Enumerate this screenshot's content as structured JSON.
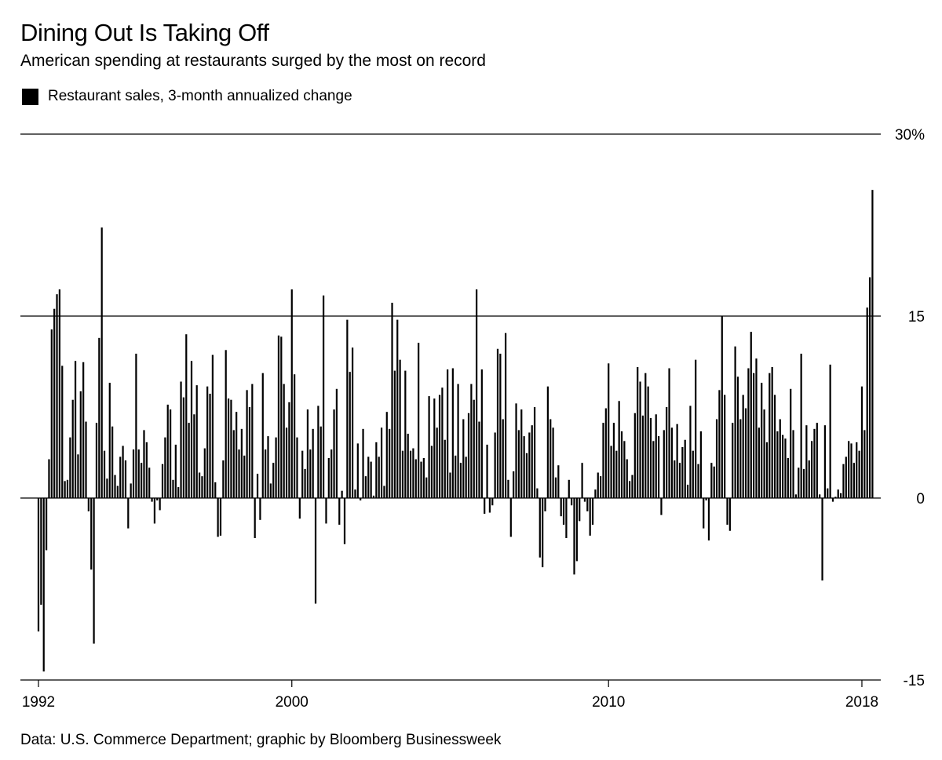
{
  "title": "Dining Out Is Taking Off",
  "subtitle": "American spending at restaurants surged by the most on record",
  "source": "Data: U.S. Commerce Department; graphic by Bloomberg Businessweek",
  "colors": {
    "bar": "#000000",
    "axis": "#000000",
    "background": "#ffffff"
  },
  "chart_data": {
    "type": "bar",
    "title": "Dining Out Is Taking Off",
    "subtitle": "American spending at restaurants surged by the most on record",
    "xlabel": "",
    "ylabel": "",
    "ylim": [
      -15,
      30
    ],
    "y_ticks": [
      30,
      15,
      0,
      -15
    ],
    "y_tick_labels": [
      "30%",
      "15",
      "0",
      "-15"
    ],
    "x_range": [
      1992,
      2018.1
    ],
    "x_ticks": [
      1992,
      2000,
      2010,
      2018
    ],
    "x_tick_labels": [
      "1992",
      "2000",
      "2010",
      "2018"
    ],
    "grid": "horizontal at 30, 15 and 0",
    "legend_position": "top-left",
    "series": [
      {
        "name": "Restaurant sales, 3-month annualized change",
        "frequency": "monthly",
        "start": "1992-01",
        "values": [
          -11,
          -8.8,
          -14.3,
          -4.3,
          3.2,
          13.9,
          15.6,
          16.8,
          17.2,
          10.9,
          1.4,
          1.5,
          5,
          8.1,
          11.3,
          3.6,
          8.8,
          11.2,
          6.3,
          -1.1,
          -5.9,
          -12,
          6.2,
          13.2,
          22.3,
          3.9,
          1.6,
          9.5,
          5.9,
          1.9,
          1,
          3.4,
          4.3,
          3.1,
          -2.5,
          1.2,
          4,
          11.9,
          4,
          2.9,
          5.6,
          4.6,
          2.5,
          -0.3,
          -2.1,
          -0.2,
          -1,
          2.8,
          5,
          7.7,
          7.3,
          1.5,
          4.4,
          0.9,
          9.6,
          8.3,
          13.5,
          6.2,
          11.3,
          6.9,
          9.3,
          2.1,
          1.8,
          4.1,
          9.2,
          8.6,
          11.8,
          1.3,
          -3.2,
          -3.1,
          3.1,
          12.2,
          8.2,
          8.1,
          5.6,
          7.1,
          4,
          5.7,
          3.5,
          8.9,
          7.5,
          9.4,
          -3.3,
          2,
          -1.8,
          10.3,
          4,
          5.1,
          1.2,
          2.9,
          5,
          13.4,
          13.3,
          9.4,
          5.8,
          7.9,
          17.2,
          10.2,
          5,
          -1.7,
          3.9,
          2.4,
          7.3,
          4,
          5.7,
          -8.7,
          7.6,
          5.9,
          16.7,
          -2.1,
          3.3,
          4,
          7.3,
          9,
          -2.2,
          0.6,
          -3.8,
          14.7,
          10.4,
          12.4,
          0.7,
          4.5,
          -0.2,
          5.7,
          1.8,
          3.4,
          3,
          0.2,
          4.6,
          3.4,
          5.8,
          1,
          7.1,
          5.7,
          16.1,
          10.5,
          14.7,
          11.4,
          3.9,
          10.5,
          5.3,
          3.9,
          4.1,
          3.2,
          12.8,
          3,
          3.3,
          1.7,
          8.4,
          4.3,
          8.2,
          5.8,
          8.5,
          9.1,
          4.8,
          10.6,
          2.1,
          10.7,
          3.5,
          9.4,
          2.9,
          6.5,
          3.4,
          7,
          9.4,
          8.1,
          17.2,
          6.3,
          10.6,
          -1.3,
          4.4,
          -1.2,
          -0.6,
          5.4,
          12.3,
          11.9,
          6.5,
          13.6,
          1.5,
          -3.2,
          2.2,
          7.8,
          5.6,
          7.3,
          5.1,
          3.7,
          5.4,
          6,
          7.5,
          0.8,
          -4.9,
          -5.7,
          -1.1,
          9.2,
          6.5,
          5.8,
          1.7,
          2.7,
          -1.5,
          -2.2,
          -3.3,
          1.5,
          -0.6,
          -6.3,
          -5.2,
          -1.9,
          2.9,
          -0.3,
          -1.1,
          -3.1,
          -2.2,
          0.7,
          2.1,
          1.8,
          6.2,
          7.4,
          11.1,
          4.3,
          6.2,
          3.9,
          8,
          5.5,
          4.7,
          3.2,
          1.4,
          1.9,
          7,
          10.8,
          9.6,
          6.8,
          10.3,
          9.2,
          6.6,
          4.7,
          6.9,
          5.1,
          -1.4,
          5.6,
          7.5,
          10.7,
          5.8,
          3.1,
          6.1,
          2.9,
          4.2,
          4.8,
          1.1,
          7.6,
          3.9,
          11.4,
          2.8,
          5.5,
          -2.5,
          -0.2,
          -3.5,
          2.9,
          2.6,
          6.5,
          8.9,
          15,
          8.5,
          -2.2,
          -2.7,
          6.2,
          12.5,
          10,
          6.5,
          8.5,
          7.4,
          10.7,
          13.7,
          10.3,
          11.5,
          5.8,
          9.5,
          7.3,
          4.6,
          10.3,
          10.8,
          8.5,
          5.5,
          6.5,
          5.2,
          4.9,
          3.3,
          9,
          5.6,
          0.3,
          2.5,
          11.9,
          2.4,
          6,
          3.1,
          4.7,
          5.7,
          6.2,
          0.3,
          -6.8,
          6,
          0.8,
          11,
          -0.3,
          0.1,
          0.7,
          0.4,
          2.8,
          3.4,
          4.7,
          4.5,
          2.9,
          4.6,
          3.9,
          9.2,
          5.6,
          15.7,
          18.2,
          25.4
        ]
      }
    ]
  }
}
